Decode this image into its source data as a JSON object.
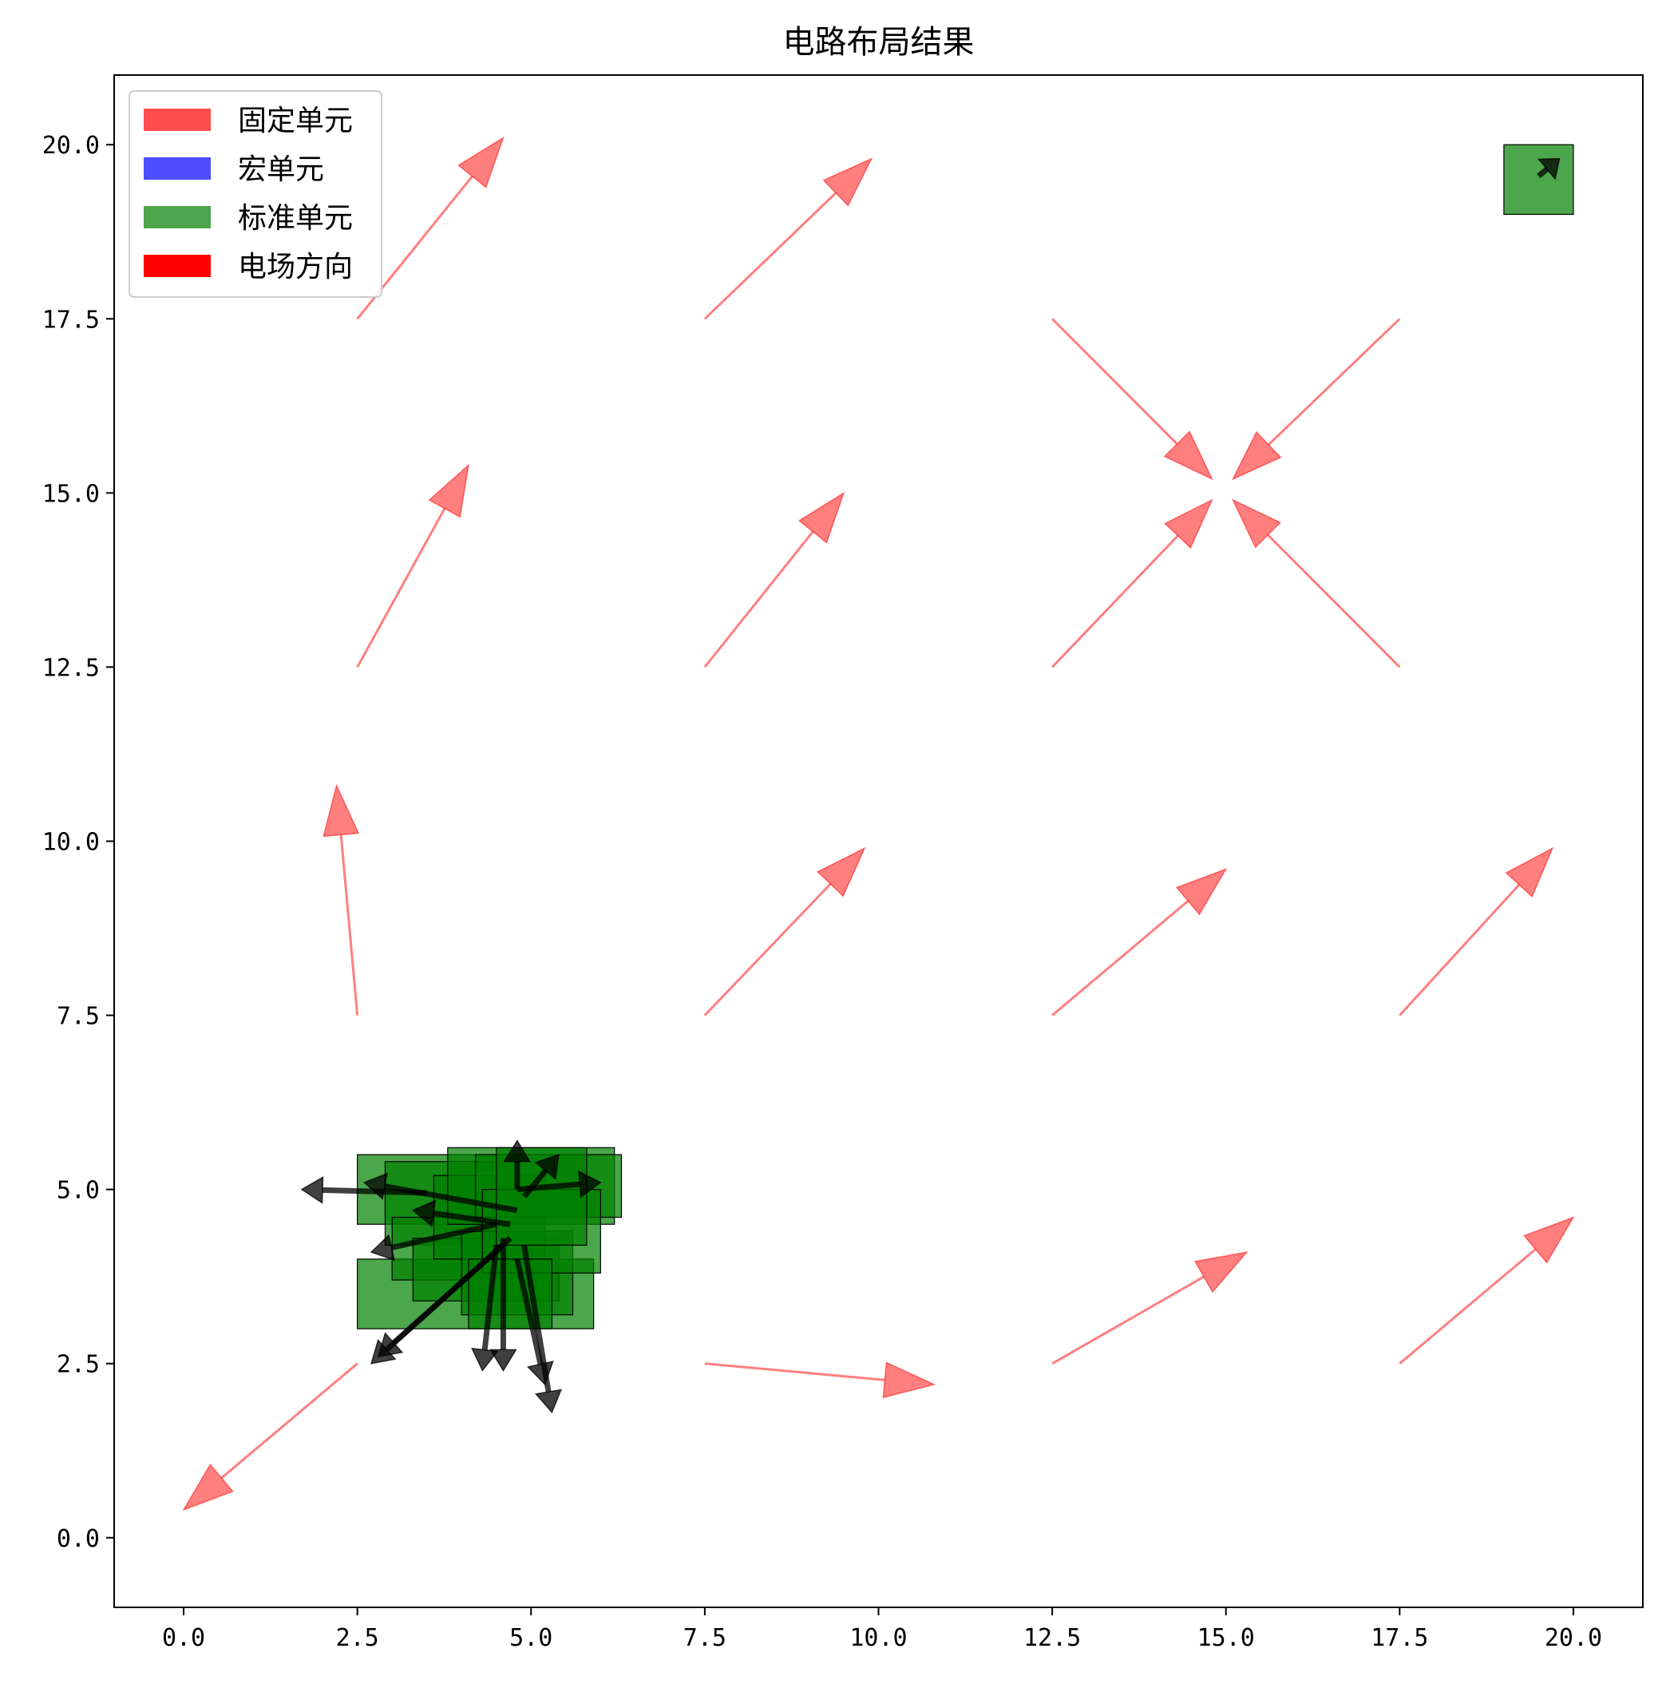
{
  "chart_data": {
    "type": "quiver",
    "title": "电路布局结果",
    "xlabel": "",
    "ylabel": "",
    "xlim": [
      -1,
      21
    ],
    "ylim": [
      -1,
      21
    ],
    "xticks": [
      0.0,
      2.5,
      5.0,
      7.5,
      10.0,
      12.5,
      15.0,
      17.5,
      20.0
    ],
    "yticks": [
      0.0,
      2.5,
      5.0,
      7.5,
      10.0,
      12.5,
      15.0,
      17.5,
      20.0
    ],
    "xtick_labels": [
      "0.0",
      "2.5",
      "5.0",
      "7.5",
      "10.0",
      "12.5",
      "15.0",
      "17.5",
      "20.0"
    ],
    "ytick_labels": [
      "0.0",
      "2.5",
      "5.0",
      "7.5",
      "10.0",
      "12.5",
      "15.0",
      "17.5",
      "20.0"
    ],
    "grid": false,
    "legend_position": "top-left",
    "legend": [
      {
        "label": "固定单元",
        "color": "#ff4d4d"
      },
      {
        "label": "宏单元",
        "color": "#4d4dff"
      },
      {
        "label": "标准单元",
        "color": "#4da64d"
      },
      {
        "label": "电场方向",
        "color": "#ff0000"
      }
    ],
    "colors": {
      "field_arrow": "#ff0000",
      "standard_cell_fill": "#008000",
      "cell_edge": "#000000",
      "cell_arrow": "#000000"
    },
    "field_arrows": [
      {
        "x": 2.5,
        "y": 17.5,
        "dx": 2.1,
        "dy": 2.6
      },
      {
        "x": 7.5,
        "y": 17.5,
        "dx": 2.4,
        "dy": 2.3
      },
      {
        "x": 12.5,
        "y": 17.5,
        "dx": 2.3,
        "dy": -2.3
      },
      {
        "x": 17.5,
        "y": 17.5,
        "dx": -2.4,
        "dy": -2.3
      },
      {
        "x": 2.5,
        "y": 12.5,
        "dx": 1.6,
        "dy": 2.9
      },
      {
        "x": 7.5,
        "y": 12.5,
        "dx": 2.0,
        "dy": 2.5
      },
      {
        "x": 12.5,
        "y": 12.5,
        "dx": 2.3,
        "dy": 2.4
      },
      {
        "x": 17.5,
        "y": 12.5,
        "dx": -2.4,
        "dy": 2.4
      },
      {
        "x": 2.5,
        "y": 7.5,
        "dx": -0.3,
        "dy": 3.3
      },
      {
        "x": 7.5,
        "y": 7.5,
        "dx": 2.3,
        "dy": 2.4
      },
      {
        "x": 12.5,
        "y": 7.5,
        "dx": 2.5,
        "dy": 2.1
      },
      {
        "x": 17.5,
        "y": 7.5,
        "dx": 2.2,
        "dy": 2.4
      },
      {
        "x": 2.5,
        "y": 2.5,
        "dx": -2.5,
        "dy": -2.1
      },
      {
        "x": 7.5,
        "y": 2.5,
        "dx": 3.3,
        "dy": -0.3
      },
      {
        "x": 12.5,
        "y": 2.5,
        "dx": 2.8,
        "dy": 1.6
      },
      {
        "x": 17.5,
        "y": 2.5,
        "dx": 2.5,
        "dy": 2.1
      }
    ],
    "standard_cells": [
      {
        "x0": 2.5,
        "y0": 3.0,
        "x1": 5.9,
        "y1": 4.0
      },
      {
        "x0": 2.5,
        "y0": 4.5,
        "x1": 4.8,
        "y1": 5.5
      },
      {
        "x0": 2.9,
        "y0": 4.2,
        "x1": 4.7,
        "y1": 5.4
      },
      {
        "x0": 3.0,
        "y0": 3.7,
        "x1": 4.6,
        "y1": 4.6
      },
      {
        "x0": 3.3,
        "y0": 3.4,
        "x1": 5.4,
        "y1": 4.3
      },
      {
        "x0": 3.6,
        "y0": 4.0,
        "x1": 5.2,
        "y1": 5.2
      },
      {
        "x0": 3.8,
        "y0": 4.5,
        "x1": 6.2,
        "y1": 5.6
      },
      {
        "x0": 4.0,
        "y0": 3.2,
        "x1": 5.6,
        "y1": 4.4
      },
      {
        "x0": 4.2,
        "y0": 4.6,
        "x1": 6.3,
        "y1": 5.5
      },
      {
        "x0": 4.3,
        "y0": 3.8,
        "x1": 6.0,
        "y1": 5.0
      },
      {
        "x0": 4.5,
        "y0": 4.2,
        "x1": 5.8,
        "y1": 5.6
      },
      {
        "x0": 4.1,
        "y0": 3.0,
        "x1": 5.3,
        "y1": 4.0
      },
      {
        "x0": 19.0,
        "y0": 19.0,
        "x1": 20.0,
        "y1": 20.0
      }
    ],
    "cell_arrows": [
      {
        "x": 3.5,
        "y": 4.95,
        "dx": -1.8,
        "dy": 0.05
      },
      {
        "x": 4.8,
        "y": 4.7,
        "dx": -2.2,
        "dy": 0.4
      },
      {
        "x": 4.5,
        "y": 4.5,
        "dx": -1.8,
        "dy": -0.4
      },
      {
        "x": 4.7,
        "y": 4.5,
        "dx": -1.4,
        "dy": 0.2
      },
      {
        "x": 4.7,
        "y": 4.3,
        "dx": -2.0,
        "dy": -1.8
      },
      {
        "x": 4.6,
        "y": 4.2,
        "dx": -1.8,
        "dy": -1.6
      },
      {
        "x": 4.5,
        "y": 4.2,
        "dx": -0.2,
        "dy": -1.8
      },
      {
        "x": 4.6,
        "y": 4.3,
        "dx": 0.0,
        "dy": -1.9
      },
      {
        "x": 4.8,
        "y": 4.0,
        "dx": 0.4,
        "dy": -1.8
      },
      {
        "x": 4.9,
        "y": 4.2,
        "dx": 0.4,
        "dy": -2.4
      },
      {
        "x": 4.8,
        "y": 5.0,
        "dx": 1.2,
        "dy": 0.1
      },
      {
        "x": 4.8,
        "y": 5.0,
        "dx": 0.0,
        "dy": 0.7
      },
      {
        "x": 4.9,
        "y": 4.9,
        "dx": 0.5,
        "dy": 0.6
      },
      {
        "x": 19.5,
        "y": 19.55,
        "dx": 0.3,
        "dy": 0.25
      }
    ]
  }
}
